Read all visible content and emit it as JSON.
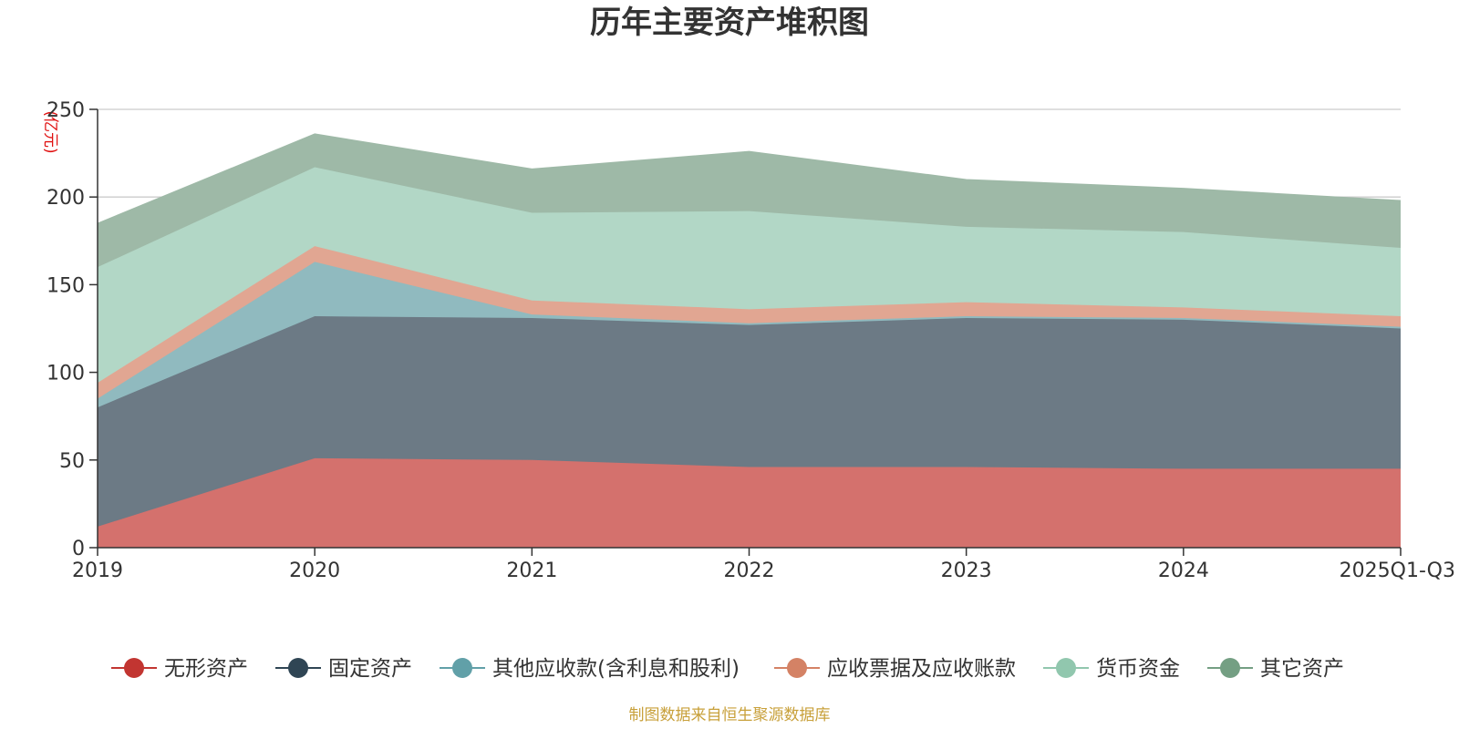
{
  "chart_data": {
    "type": "area",
    "stacked": true,
    "title": "历年主要资产堆积图",
    "unit_label": "(亿元)",
    "xlabel": "",
    "ylabel": "(亿元)",
    "ylim": [
      0,
      250
    ],
    "yticks": [
      0,
      50,
      100,
      150,
      200,
      250
    ],
    "grid": true,
    "legend_position": "bottom",
    "categories": [
      "2019",
      "2020",
      "2021",
      "2022",
      "2023",
      "2024",
      "2025Q1-Q3"
    ],
    "series": [
      {
        "name": "无形资产",
        "color": "#c23531",
        "fill": "#d4716d",
        "values": [
          12,
          51,
          50,
          46,
          46,
          45,
          45
        ]
      },
      {
        "name": "固定资产",
        "color": "#2f4554",
        "fill": "#6c7a85",
        "values": [
          68,
          81,
          81,
          81,
          85,
          85,
          80
        ]
      },
      {
        "name": "其他应收款(含利息和股利)",
        "color": "#61a0a8",
        "fill": "#90babf",
        "values": [
          5,
          31,
          2,
          1,
          1,
          1,
          1
        ]
      },
      {
        "name": "应收票据及应收账款",
        "color": "#d48265",
        "fill": "#e1a692",
        "values": [
          9,
          9,
          8,
          8,
          8,
          6,
          6
        ]
      },
      {
        "name": "货币资金",
        "color": "#91c7ae",
        "fill": "#b2d7c6",
        "values": [
          66,
          45,
          50,
          56,
          43,
          43,
          39
        ]
      },
      {
        "name": "其它资产",
        "color": "#749f83",
        "fill": "#9eb9a7",
        "values": [
          25,
          19,
          25,
          34,
          27,
          25,
          27
        ]
      }
    ],
    "source": "制图数据来自恒生聚源数据库"
  }
}
